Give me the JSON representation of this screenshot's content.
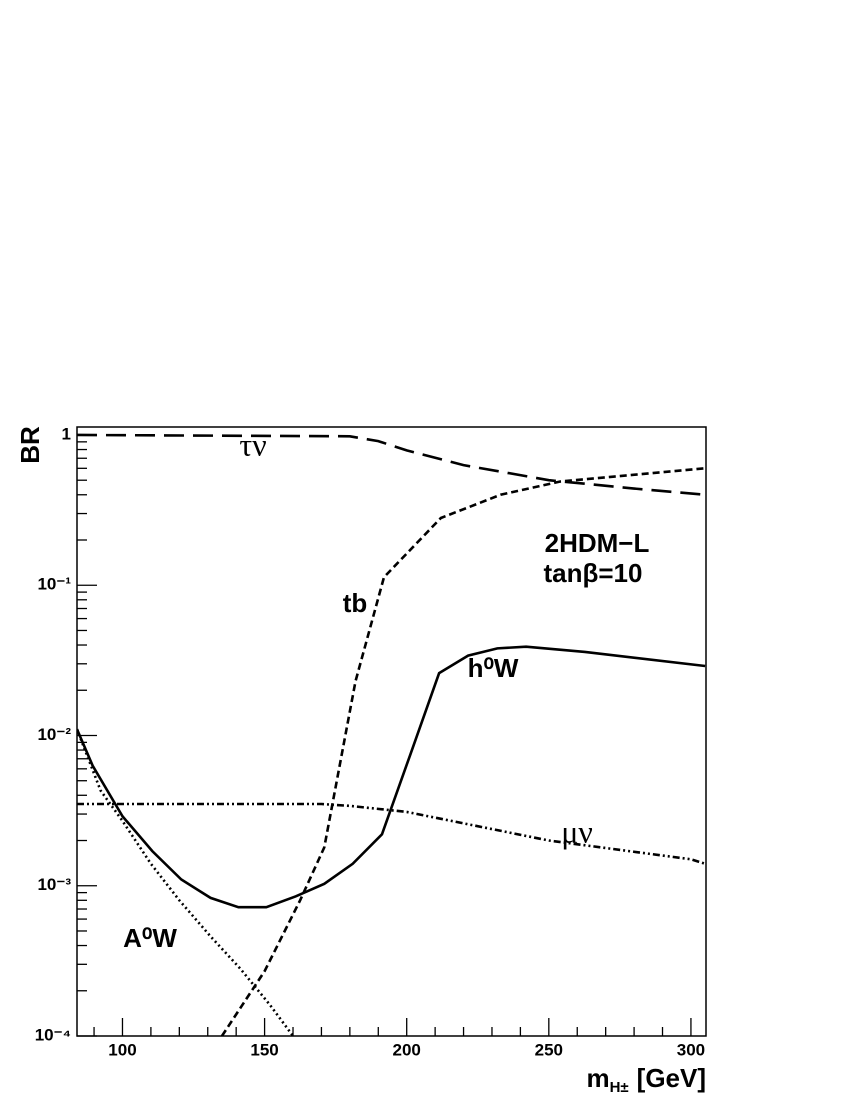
{
  "chart_data": {
    "type": "line",
    "y_label": "BR",
    "x_label": {
      "main": "m",
      "sub": "H±",
      "unit": "[GeV]"
    },
    "log_y": true,
    "xlim": [
      84,
      305.3
    ],
    "ylim": [
      0.0001,
      1.13
    ],
    "xticks": [
      100,
      150,
      200,
      250,
      300
    ],
    "xminorticks": [
      90,
      110,
      120,
      130,
      140,
      160,
      170,
      180,
      190,
      210,
      220,
      230,
      240,
      260,
      270,
      280,
      290
    ],
    "yticks": [
      {
        "value": 0.0001,
        "label": "10⁻⁴"
      },
      {
        "value": 0.001,
        "label": "10⁻³"
      },
      {
        "value": 0.01,
        "label": "10⁻²"
      },
      {
        "value": 0.1,
        "label": "10⁻¹"
      },
      1
    ],
    "yminorticks": [
      0.0002,
      0.0003,
      0.0004,
      0.0005,
      0.0006,
      0.0007,
      0.0008,
      0.0009,
      0.002,
      0.003,
      0.004,
      0.005,
      0.006,
      0.007,
      0.008,
      0.009,
      0.02,
      0.03,
      0.04,
      0.05,
      0.06,
      0.07,
      0.08,
      0.09,
      0.2,
      0.3,
      0.4,
      0.5,
      0.6,
      0.7,
      0.8,
      0.9
    ],
    "series": [
      {
        "name": "τν",
        "color": "#000000",
        "dash": "20,9",
        "x": [
          84,
          180,
          190,
          200,
          220,
          250,
          280,
          305
        ],
        "values": [
          1.0,
          0.98,
          0.91,
          0.79,
          0.63,
          0.5,
          0.44,
          0.4
        ]
      },
      {
        "name": "tb",
        "color": "#000000",
        "dash": "7,4",
        "x": [
          135,
          150,
          162.5,
          171,
          182,
          192,
          212,
          233,
          254,
          305
        ],
        "values": [
          0.0001,
          0.00027,
          0.0008,
          0.0018,
          0.023,
          0.113,
          0.28,
          0.4,
          0.49,
          0.6
        ]
      },
      {
        "name": "h⁰W",
        "color": "#000000",
        "dash": "none",
        "x": [
          84,
          89.5,
          100,
          110.5,
          120.7,
          131,
          140.8,
          150.6,
          161,
          171,
          181,
          191.3,
          201.2,
          211.4,
          221.6,
          231.9,
          242,
          262.7,
          305
        ],
        "values": [
          0.011,
          0.0063,
          0.0029,
          0.0017,
          0.0011,
          0.00083,
          0.00072,
          0.00072,
          0.00085,
          0.00103,
          0.0014,
          0.0022,
          0.0074,
          0.026,
          0.034,
          0.038,
          0.039,
          0.036,
          0.029
        ]
      },
      {
        "name": "μν",
        "color": "#000000",
        "dash": "7,3,2,3,2,3",
        "x": [
          84,
          170,
          180,
          200,
          250,
          300,
          305
        ],
        "values": [
          0.0035,
          0.0035,
          0.0034,
          0.0031,
          0.002,
          0.0015,
          0.0014
        ]
      },
      {
        "name": "A⁰W",
        "color": "#000000",
        "dash": "2,3",
        "x": [
          84,
          92.3,
          100,
          110,
          120,
          131,
          141.5,
          152,
          160
        ],
        "values": [
          0.011,
          0.0043,
          0.0027,
          0.0014,
          0.0008,
          0.00046,
          0.00028,
          0.00016,
          0.0001
        ]
      }
    ],
    "annotations": [
      "2HDM−L",
      "tanβ=10"
    ]
  }
}
